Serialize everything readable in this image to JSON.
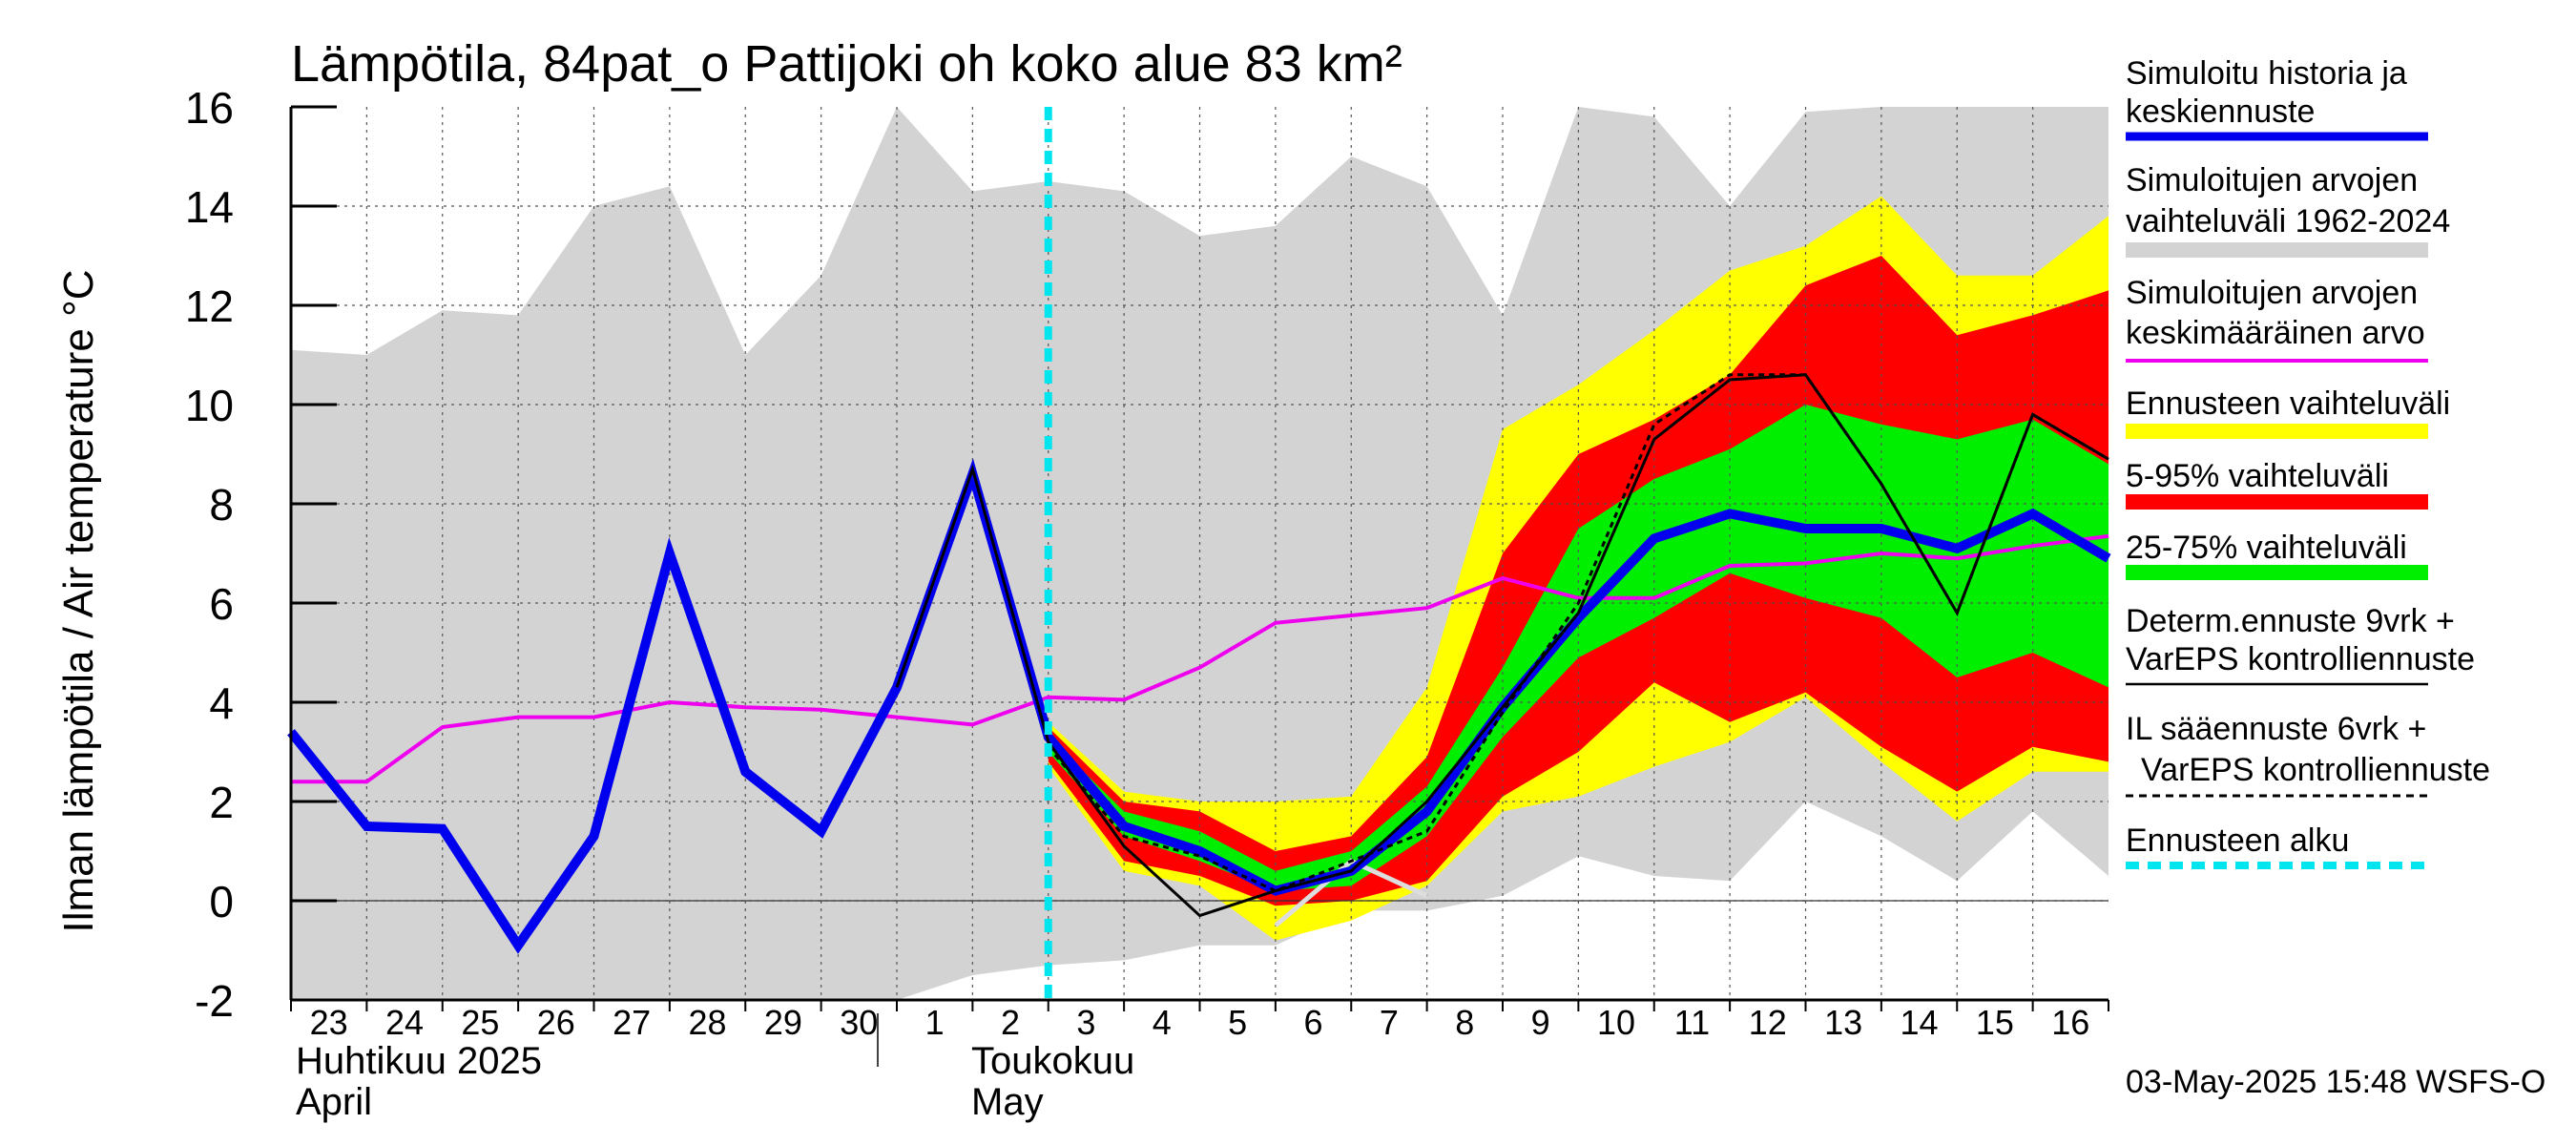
{
  "chart_data": {
    "type": "area",
    "title": "Lämpötila, 84pat_o Pattijoki oh koko alue 83 km²",
    "ylabel": "Ilman lämpötila / Air temperature   °C",
    "ylim": [
      -2,
      16
    ],
    "yticks": [
      -2,
      0,
      2,
      4,
      6,
      8,
      10,
      12,
      14,
      16
    ],
    "xlim": [
      23,
      47
    ],
    "grid": true,
    "day_labels": [
      "23",
      "24",
      "25",
      "26",
      "27",
      "28",
      "29",
      "30",
      "1",
      "2",
      "3",
      "4",
      "5",
      "6",
      "7",
      "8",
      "9",
      "10",
      "11",
      "12",
      "13",
      "14",
      "15",
      "16"
    ],
    "month_labels": [
      {
        "fi": "Huhtikuu  2025",
        "en": "April"
      },
      {
        "fi": "Toukokuu",
        "en": "May"
      }
    ],
    "timestamp": "03-May-2025 15:48 WSFS-O",
    "forecast_start_x": 33,
    "hist_range": {
      "name": "Simuloitujen arvojen vaihteluväli 1962-2024",
      "color": "#d3d3d3",
      "x": [
        23,
        24,
        25,
        26,
        27,
        28,
        29,
        30,
        31,
        32,
        33,
        34,
        35,
        36,
        37,
        38,
        39,
        40,
        41,
        42,
        43,
        44,
        45,
        46,
        47
      ],
      "upper": [
        11.1,
        11.0,
        11.9,
        11.8,
        14.0,
        14.4,
        11.0,
        12.6,
        16.0,
        14.3,
        14.5,
        14.3,
        13.4,
        13.6,
        15.0,
        14.4,
        11.8,
        16.0,
        15.8,
        14.0,
        15.9,
        16.0,
        16.0,
        16.0,
        16.0
      ],
      "lower": [
        -2.0,
        -2.0,
        -2.0,
        -2.0,
        -2.0,
        -2.0,
        -2.0,
        -2.0,
        -2.0,
        -1.5,
        -1.3,
        -1.2,
        -0.9,
        -0.9,
        -0.2,
        -0.2,
        0.1,
        0.9,
        0.5,
        0.4,
        2.0,
        1.3,
        0.4,
        1.8,
        0.5
      ]
    },
    "ens_full": {
      "name": "Ennusteen vaihteluväli",
      "color": "#ffff00",
      "x": [
        33,
        34,
        35,
        36,
        37,
        38,
        39,
        40,
        41,
        42,
        43,
        44,
        45,
        46,
        47
      ],
      "upper": [
        3.6,
        2.2,
        2.0,
        2.0,
        2.1,
        4.3,
        9.5,
        10.4,
        11.5,
        12.7,
        13.2,
        14.2,
        12.6,
        12.6,
        13.8
      ],
      "lower": [
        2.7,
        0.6,
        0.3,
        -0.8,
        -0.4,
        0.3,
        1.8,
        2.1,
        2.7,
        3.2,
        4.1,
        2.8,
        1.6,
        2.6,
        2.6
      ]
    },
    "ens_5_95": {
      "name": "5-95% vaihteluväli",
      "color": "#ff0000",
      "x": [
        33,
        34,
        35,
        36,
        37,
        38,
        39,
        40,
        41,
        42,
        43,
        44,
        45,
        46,
        47
      ],
      "upper": [
        3.5,
        2.0,
        1.8,
        1.0,
        1.3,
        2.9,
        7.0,
        9.0,
        9.7,
        10.6,
        12.4,
        13.0,
        11.4,
        11.8,
        12.3
      ],
      "lower": [
        2.8,
        0.8,
        0.5,
        -0.1,
        0.0,
        0.4,
        2.1,
        3.0,
        4.4,
        3.6,
        4.2,
        3.1,
        2.2,
        3.1,
        2.8
      ]
    },
    "ens_25_75": {
      "name": "25-75% vaihteluväli",
      "color": "#00ee00",
      "x": [
        33,
        34,
        35,
        36,
        37,
        38,
        39,
        40,
        41,
        42,
        43,
        44,
        45,
        46,
        47
      ],
      "upper": [
        3.3,
        1.8,
        1.4,
        0.6,
        1.0,
        2.3,
        4.7,
        7.5,
        8.5,
        9.1,
        10.0,
        9.6,
        9.3,
        9.7,
        8.8
      ],
      "lower": [
        3.0,
        1.3,
        0.8,
        0.2,
        0.3,
        1.3,
        3.3,
        4.9,
        5.7,
        6.6,
        6.1,
        5.7,
        4.5,
        5.0,
        4.3
      ]
    },
    "series": [
      {
        "name": "Simuloitujen arvojen keskimääräinen arvo",
        "color": "#ee00ee",
        "x": [
          23,
          24,
          25,
          26,
          27,
          28,
          29,
          30,
          31,
          32,
          33,
          34,
          35,
          36,
          37,
          38,
          39,
          40,
          41,
          42,
          43,
          44,
          45,
          46,
          47
        ],
        "values": [
          2.4,
          2.4,
          3.5,
          3.7,
          3.7,
          4.0,
          3.9,
          3.85,
          3.7,
          3.55,
          4.1,
          4.05,
          4.7,
          5.6,
          5.75,
          5.9,
          6.5,
          6.1,
          6.1,
          6.75,
          6.8,
          7.0,
          6.9,
          7.15,
          7.35
        ]
      },
      {
        "name": "Simuloitu historia ja keskiennuste",
        "color": "#0000ee",
        "x": [
          23,
          24,
          25,
          26,
          27,
          28,
          29,
          30,
          31,
          32,
          33,
          34,
          35,
          36,
          37,
          38,
          39,
          40,
          41,
          42,
          43,
          44,
          45,
          46,
          47
        ],
        "values": [
          3.4,
          1.5,
          1.45,
          -0.9,
          1.3,
          7.0,
          2.6,
          1.4,
          4.3,
          8.6,
          3.3,
          1.5,
          1.0,
          0.2,
          0.6,
          1.8,
          3.9,
          5.7,
          7.3,
          7.8,
          7.5,
          7.5,
          7.1,
          7.8,
          6.9
        ]
      },
      {
        "name": "Determ.ennuste 9vrk + VarEPS kontrolliennuste",
        "color": "#000000",
        "x": [
          31,
          32,
          33,
          34,
          35,
          36,
          37,
          38,
          39,
          40,
          41,
          42,
          43,
          44,
          45,
          46,
          47
        ],
        "values": [
          4.3,
          8.7,
          3.2,
          1.1,
          -0.3,
          0.2,
          0.6,
          2.0,
          3.9,
          5.8,
          9.3,
          10.5,
          10.6,
          8.4,
          5.8,
          9.8,
          8.9
        ]
      },
      {
        "name": "IL sääennuste 6vrk + VarEPS kontrolliennuste",
        "color": "#000000",
        "dashed": true,
        "x": [
          33,
          34,
          35,
          36,
          37,
          38,
          39,
          40,
          41,
          42,
          43,
          44,
          45,
          46,
          47
        ],
        "values": [
          3.1,
          1.3,
          0.9,
          0.2,
          0.8,
          1.4,
          3.8,
          6.0,
          9.6,
          10.6,
          10.6,
          8.4,
          5.8,
          9.8,
          8.9
        ]
      },
      {
        "name": "pale member",
        "color": "#dddddd",
        "x": [
          36,
          37,
          38
        ],
        "values": [
          -0.5,
          0.8,
          0.1
        ]
      }
    ]
  },
  "legend": [
    {
      "label": "Simuloitu historia ja keskiennuste",
      "color": "#0000ee"
    },
    {
      "label": "Simuloitujen arvojen vaihteluväli 1962-2024",
      "color": "#d3d3d3"
    },
    {
      "label": "Simuloitujen arvojen keskimääräinen arvo",
      "color": "#ee00ee"
    },
    {
      "label": "Ennusteen vaihteluväli",
      "color": "#ffff00"
    },
    {
      "label": "5-95% vaihteluväli",
      "color": "#ff0000"
    },
    {
      "label": "25-75% vaihteluväli",
      "color": "#00ee00"
    },
    {
      "label": "Determ.ennuste 9vrk + VarEPS kontrolliennuste",
      "color": "#000000"
    },
    {
      "label": "IL sääennuste 6vrk  + VarEPS kontrolliennuste",
      "color": "#000000"
    },
    {
      "label": "Ennusteen alku",
      "color": "#00e5ee"
    }
  ]
}
